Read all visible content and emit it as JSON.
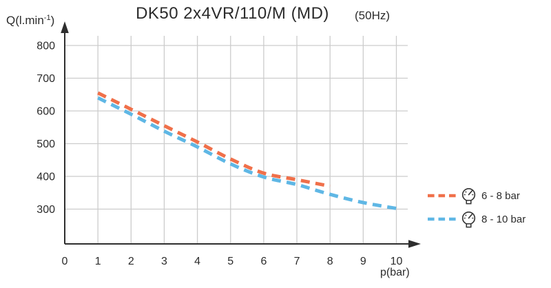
{
  "chart_data": {
    "type": "line",
    "title": "DK50 2x4VR/110/M (MD)",
    "subtitle": "(50Hz)",
    "xlabel": "p(bar)",
    "ylabel": "Q(l.min-1)",
    "xlim": [
      0,
      10.7
    ],
    "ylim": [
      230,
      830
    ],
    "x_ticks": [
      0,
      1,
      2,
      3,
      4,
      5,
      6,
      7,
      8,
      9,
      10
    ],
    "y_ticks": [
      300,
      400,
      500,
      600,
      700,
      800
    ],
    "grid": true,
    "line_style": "dashed",
    "legend_position": "right-bottom",
    "series": [
      {
        "name": "6 - 8 bar",
        "color": "#f0704a",
        "x": [
          1,
          2,
          3,
          4,
          5,
          6,
          7,
          8
        ],
        "values": [
          655,
          605,
          555,
          505,
          453,
          410,
          390,
          370
        ]
      },
      {
        "name": "8 - 10 bar",
        "color": "#5fb7e5",
        "x": [
          1,
          2,
          3,
          4,
          5,
          6,
          7,
          8,
          9,
          10
        ],
        "values": [
          640,
          590,
          538,
          490,
          438,
          398,
          375,
          345,
          320,
          302
        ]
      }
    ]
  },
  "y_axis": {
    "prefix": "Q(l.min",
    "superscript": "-1",
    "suffix": ")"
  },
  "legend": {
    "items": [
      {
        "label": "6 - 8 bar",
        "icon": "pressure-gauge-icon"
      },
      {
        "label": "8 - 10 bar",
        "icon": "pressure-gauge-icon"
      }
    ]
  },
  "colors": {
    "axis": "#2e2e2e",
    "grid": "#cccccc",
    "text": "#2b2b2b",
    "background": "#ffffff"
  }
}
